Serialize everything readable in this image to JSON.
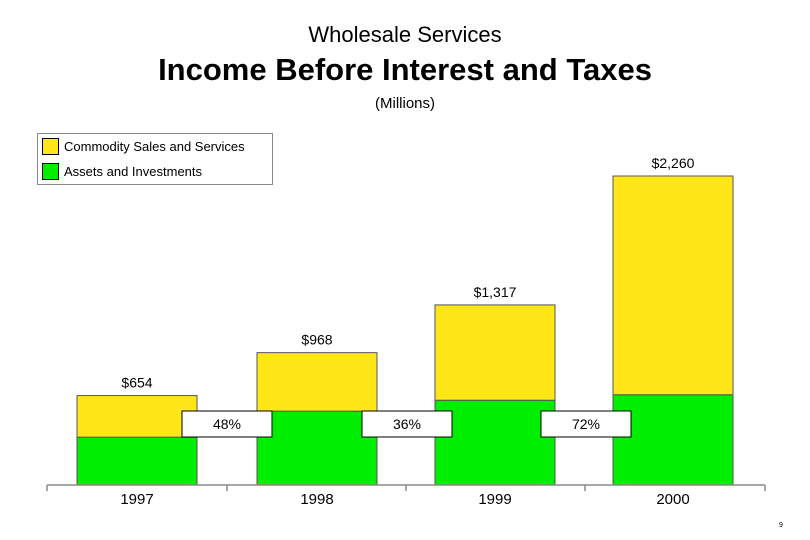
{
  "header": {
    "supertitle": "Wholesale Services",
    "title": "Income Before Interest and Taxes",
    "subtitle": "(Millions)"
  },
  "legend": {
    "items": [
      {
        "label": "Commodity Sales and Services",
        "color": "#FFE617"
      },
      {
        "label": "Assets and Investments",
        "color": "#00EE00"
      }
    ]
  },
  "page_number": "9",
  "chart_data": {
    "type": "bar",
    "stacked": true,
    "title": "Income Before Interest and Taxes",
    "ylabel": "(Millions)",
    "categories": [
      "1997",
      "1998",
      "1999",
      "2000"
    ],
    "series": [
      {
        "name": "Assets and Investments",
        "color": "#00EE00",
        "values": [
          350,
          540,
          620,
          660
        ]
      },
      {
        "name": "Commodity Sales and Services",
        "color": "#FFE617",
        "values": [
          304,
          428,
          697,
          1600
        ]
      }
    ],
    "totals": [
      654,
      968,
      1317,
      2260
    ],
    "total_labels": [
      "$654",
      "$968",
      "$1,317",
      "$2,260"
    ],
    "growth_labels": [
      "48%",
      "36%",
      "72%"
    ],
    "ylim": [
      0,
      2260
    ]
  }
}
